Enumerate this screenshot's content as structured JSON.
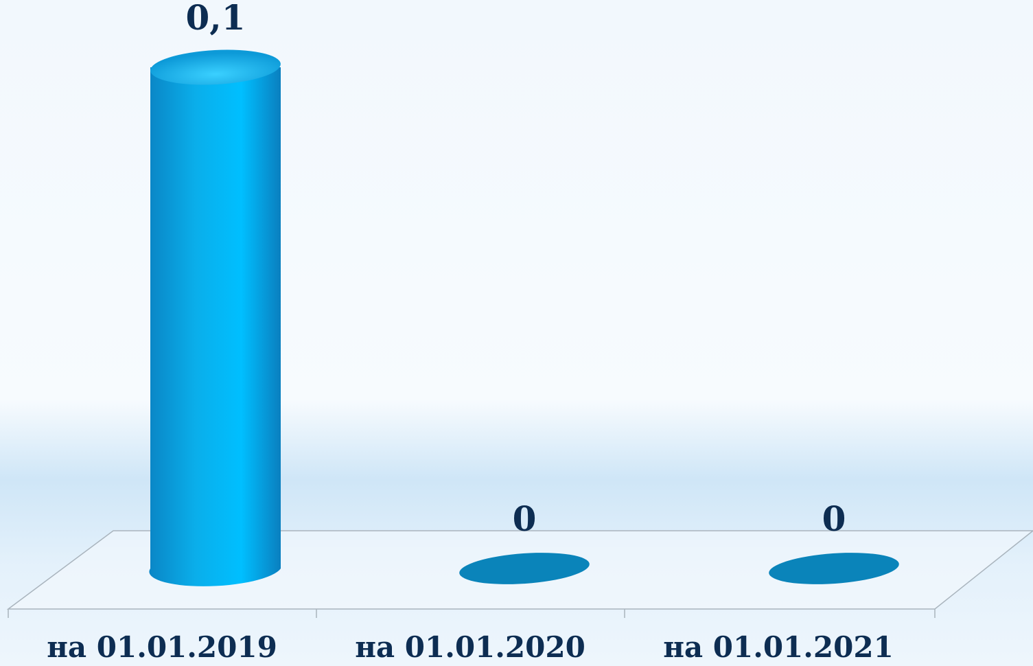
{
  "chart_data": {
    "type": "bar3d",
    "categories": [
      "на 01.01.2019",
      "на 01.01.2020",
      "на 01.01.2021"
    ],
    "values": [
      0.1,
      0,
      0
    ],
    "value_labels": [
      "0,1",
      "0",
      "0"
    ],
    "color": "#00b4f0",
    "ylim": [
      0,
      0.1
    ]
  }
}
